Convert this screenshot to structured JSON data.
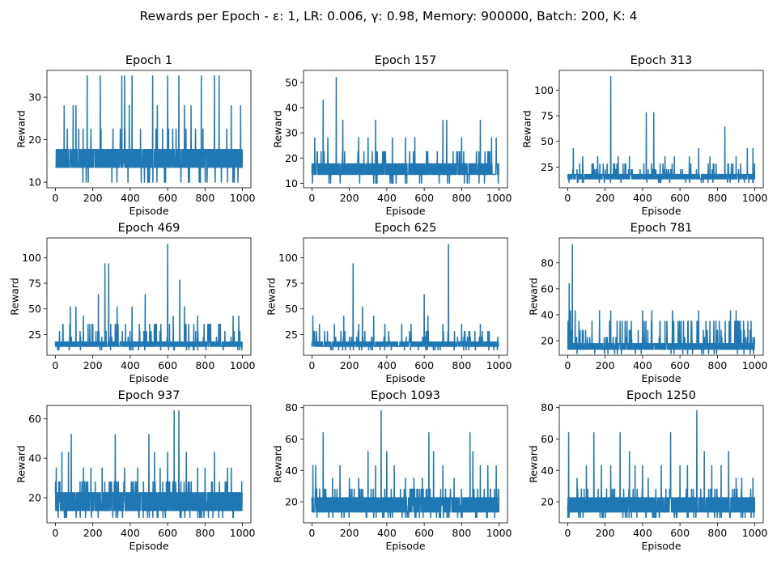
{
  "figure": {
    "suptitle": "Rewards per Epoch - ε: 1, LR: 0.006, γ: 0.98, Memory: 900000, Batch: 200, K: 4"
  },
  "style": {
    "line_color": "#1f77b4",
    "axes_color": "#000000",
    "background": "#ffffff"
  },
  "chart_data": [
    {
      "type": "line",
      "title": "Epoch 1",
      "xlabel": "Episode",
      "ylabel": "Reward",
      "xlim": [
        -45,
        1045
      ],
      "ylim": [
        8.7,
        36.3
      ],
      "x_ticks": [
        0,
        200,
        400,
        600,
        800,
        1000
      ],
      "y_ticks": [
        10,
        20,
        30
      ],
      "series": [
        {
          "x_range": [
            0,
            999
          ],
          "baseline": [
            13.5,
            17.7
          ],
          "noise_levels": [
            10,
            13.5,
            14.5,
            16,
            17.7,
            22.5
          ],
          "spike_probability": 0.13,
          "spikes": [
            [
              47,
              28
            ],
            [
              95,
              28
            ],
            [
              110,
              28
            ],
            [
              170,
              35
            ],
            [
              240,
              35
            ],
            [
              355,
              35
            ],
            [
              370,
              35
            ],
            [
              395,
              28
            ],
            [
              410,
              35
            ],
            [
              520,
              35
            ],
            [
              545,
              28
            ],
            [
              600,
              35
            ],
            [
              660,
              35
            ],
            [
              690,
              28
            ],
            [
              725,
              28
            ],
            [
              780,
              35
            ],
            [
              850,
              35
            ],
            [
              875,
              35
            ],
            [
              940,
              28
            ],
            [
              990,
              28
            ]
          ]
        }
      ]
    },
    {
      "type": "line",
      "title": "Epoch 157",
      "xlabel": "Episode",
      "ylabel": "Reward",
      "xlim": [
        -45,
        1045
      ],
      "ylim": [
        8.2,
        54.8
      ],
      "x_ticks": [
        0,
        200,
        400,
        600,
        800,
        1000
      ],
      "y_ticks": [
        10,
        20,
        30,
        40,
        50
      ],
      "series": [
        {
          "x_range": [
            0,
            999
          ],
          "baseline": [
            13.5,
            17.7
          ],
          "noise_levels": [
            10,
            13.5,
            17.7,
            22.5
          ],
          "spike_probability": 0.13,
          "spikes": [
            [
              15,
              28
            ],
            [
              60,
              43
            ],
            [
              85,
              28
            ],
            [
              130,
              52
            ],
            [
              165,
              35
            ],
            [
              250,
              28
            ],
            [
              300,
              28
            ],
            [
              340,
              35
            ],
            [
              430,
              28
            ],
            [
              500,
              28
            ],
            [
              550,
              28
            ],
            [
              700,
              35
            ],
            [
              720,
              35
            ],
            [
              800,
              28
            ],
            [
              900,
              35
            ],
            [
              960,
              28
            ],
            [
              985,
              28
            ]
          ]
        }
      ]
    },
    {
      "type": "line",
      "title": "Epoch 313",
      "xlabel": "Episode",
      "ylabel": "Reward",
      "xlim": [
        -45,
        1045
      ],
      "ylim": [
        4.8,
        119.2
      ],
      "x_ticks": [
        0,
        200,
        400,
        600,
        800,
        1000
      ],
      "y_ticks": [
        25,
        50,
        75,
        100
      ],
      "series": [
        {
          "x_range": [
            0,
            999
          ],
          "baseline": [
            13.5,
            17.7
          ],
          "noise_levels": [
            10,
            13.5,
            17.7,
            22.5,
            28
          ],
          "spike_probability": 0.16,
          "spikes": [
            [
              30,
              43
            ],
            [
              80,
              35
            ],
            [
              160,
              35
            ],
            [
              230,
              113
            ],
            [
              270,
              35
            ],
            [
              330,
              35
            ],
            [
              420,
              78
            ],
            [
              460,
              78
            ],
            [
              520,
              35
            ],
            [
              570,
              35
            ],
            [
              650,
              35
            ],
            [
              700,
              43
            ],
            [
              760,
              35
            ],
            [
              840,
              64
            ],
            [
              900,
              35
            ],
            [
              960,
              43
            ],
            [
              990,
              43
            ]
          ]
        }
      ]
    },
    {
      "type": "line",
      "title": "Epoch 469",
      "xlabel": "Episode",
      "ylabel": "Reward",
      "xlim": [
        -45,
        1045
      ],
      "ylim": [
        4.8,
        119.2
      ],
      "x_ticks": [
        0,
        200,
        400,
        600,
        800,
        1000
      ],
      "y_ticks": [
        25,
        50,
        75,
        100
      ],
      "series": [
        {
          "x_range": [
            0,
            999
          ],
          "baseline": [
            13.5,
            17.7
          ],
          "noise_levels": [
            10,
            13.5,
            17.7,
            22.5,
            28,
            35
          ],
          "spike_probability": 0.17,
          "spikes": [
            [
              40,
              35
            ],
            [
              80,
              52
            ],
            [
              110,
              52
            ],
            [
              150,
              43
            ],
            [
              200,
              35
            ],
            [
              230,
              64
            ],
            [
              265,
              94
            ],
            [
              285,
              94
            ],
            [
              330,
              52
            ],
            [
              410,
              52
            ],
            [
              480,
              64
            ],
            [
              540,
              35
            ],
            [
              600,
              113
            ],
            [
              630,
              43
            ],
            [
              665,
              78
            ],
            [
              690,
              52
            ],
            [
              760,
              43
            ],
            [
              830,
              35
            ],
            [
              950,
              43
            ],
            [
              980,
              43
            ]
          ]
        }
      ]
    },
    {
      "type": "line",
      "title": "Epoch 625",
      "xlabel": "Episode",
      "ylabel": "Reward",
      "xlim": [
        -45,
        1045
      ],
      "ylim": [
        4.8,
        119.2
      ],
      "x_ticks": [
        0,
        200,
        400,
        600,
        800,
        1000
      ],
      "y_ticks": [
        25,
        50,
        75,
        100
      ],
      "series": [
        {
          "x_range": [
            0,
            999
          ],
          "baseline": [
            13.5,
            17.7
          ],
          "noise_levels": [
            10,
            13.5,
            17.7,
            22.5,
            28
          ],
          "spike_probability": 0.15,
          "spikes": [
            [
              5,
              43
            ],
            [
              40,
              35
            ],
            [
              120,
              35
            ],
            [
              170,
              43
            ],
            [
              220,
              94
            ],
            [
              250,
              35
            ],
            [
              270,
              52
            ],
            [
              330,
              43
            ],
            [
              390,
              35
            ],
            [
              480,
              35
            ],
            [
              530,
              35
            ],
            [
              600,
              64
            ],
            [
              620,
              43
            ],
            [
              700,
              35
            ],
            [
              730,
              113
            ],
            [
              800,
              35
            ],
            [
              900,
              35
            ]
          ]
        }
      ]
    },
    {
      "type": "line",
      "title": "Epoch 781",
      "xlabel": "Episode",
      "ylabel": "Reward",
      "xlim": [
        -45,
        1045
      ],
      "ylim": [
        8.8,
        99.2
      ],
      "x_ticks": [
        0,
        200,
        400,
        600,
        800,
        1000
      ],
      "y_ticks": [
        20,
        40,
        60,
        80
      ],
      "series": [
        {
          "x_range": [
            0,
            999
          ],
          "baseline": [
            13.5,
            17.7
          ],
          "noise_levels": [
            10,
            13.5,
            17.7,
            22.5,
            28,
            35
          ],
          "spike_probability": 0.17,
          "spikes": [
            [
              8,
              64
            ],
            [
              15,
              43
            ],
            [
              25,
              94
            ],
            [
              40,
              43
            ],
            [
              60,
              35
            ],
            [
              130,
              35
            ],
            [
              170,
              43
            ],
            [
              230,
              43
            ],
            [
              280,
              35
            ],
            [
              340,
              35
            ],
            [
              400,
              43
            ],
            [
              450,
              43
            ],
            [
              520,
              35
            ],
            [
              560,
              43
            ],
            [
              590,
              35
            ],
            [
              660,
              35
            ],
            [
              700,
              43
            ],
            [
              760,
              35
            ],
            [
              810,
              35
            ],
            [
              870,
              43
            ],
            [
              900,
              43
            ],
            [
              940,
              35
            ],
            [
              980,
              35
            ]
          ]
        }
      ]
    },
    {
      "type": "line",
      "title": "Epoch 937",
      "xlabel": "Episode",
      "ylabel": "Reward",
      "xlim": [
        -45,
        1045
      ],
      "ylim": [
        7.3,
        66.7
      ],
      "x_ticks": [
        0,
        200,
        400,
        600,
        800,
        1000
      ],
      "y_ticks": [
        20,
        40,
        60
      ],
      "series": [
        {
          "x_range": [
            0,
            999
          ],
          "baseline": [
            13.5,
            22.5
          ],
          "noise_levels": [
            10,
            13.5,
            17.7,
            22.5,
            28
          ],
          "spike_probability": 0.25,
          "spikes": [
            [
              5,
              35
            ],
            [
              35,
              43
            ],
            [
              70,
              43
            ],
            [
              85,
              52
            ],
            [
              150,
              35
            ],
            [
              190,
              35
            ],
            [
              250,
              35
            ],
            [
              320,
              52
            ],
            [
              370,
              35
            ],
            [
              440,
              35
            ],
            [
              500,
              52
            ],
            [
              530,
              43
            ],
            [
              560,
              35
            ],
            [
              600,
              43
            ],
            [
              635,
              64
            ],
            [
              660,
              64
            ],
            [
              700,
              43
            ],
            [
              760,
              35
            ],
            [
              800,
              35
            ],
            [
              850,
              43
            ],
            [
              920,
              35
            ],
            [
              940,
              35
            ]
          ]
        }
      ]
    },
    {
      "type": "line",
      "title": "Epoch 1093",
      "xlabel": "Episode",
      "ylabel": "Reward",
      "xlim": [
        -45,
        1045
      ],
      "ylim": [
        6.6,
        81.4
      ],
      "x_ticks": [
        0,
        200,
        400,
        600,
        800,
        1000
      ],
      "y_ticks": [
        20,
        40,
        60,
        80
      ],
      "series": [
        {
          "x_range": [
            0,
            999
          ],
          "baseline": [
            13.5,
            22.5
          ],
          "noise_levels": [
            10,
            13.5,
            17.7,
            22.5,
            28
          ],
          "spike_probability": 0.22,
          "spikes": [
            [
              5,
              43
            ],
            [
              20,
              43
            ],
            [
              60,
              64
            ],
            [
              110,
              35
            ],
            [
              150,
              43
            ],
            [
              200,
              35
            ],
            [
              250,
              35
            ],
            [
              300,
              52
            ],
            [
              340,
              43
            ],
            [
              370,
              78
            ],
            [
              400,
              52
            ],
            [
              440,
              43
            ],
            [
              500,
              35
            ],
            [
              545,
              35
            ],
            [
              590,
              35
            ],
            [
              625,
              64
            ],
            [
              650,
              52
            ],
            [
              700,
              43
            ],
            [
              760,
              35
            ],
            [
              845,
              64
            ],
            [
              860,
              52
            ],
            [
              900,
              43
            ],
            [
              940,
              43
            ],
            [
              985,
              43
            ]
          ]
        }
      ]
    },
    {
      "type": "line",
      "title": "Epoch 1250",
      "xlabel": "Episode",
      "ylabel": "Reward",
      "xlim": [
        -45,
        1045
      ],
      "ylim": [
        6.6,
        81.4
      ],
      "x_ticks": [
        0,
        200,
        400,
        600,
        800,
        1000
      ],
      "y_ticks": [
        20,
        40,
        60,
        80
      ],
      "series": [
        {
          "x_range": [
            0,
            999
          ],
          "baseline": [
            13.5,
            22.5
          ],
          "noise_levels": [
            10,
            13.5,
            17.7,
            22.5,
            28
          ],
          "spike_probability": 0.22,
          "spikes": [
            [
              5,
              64
            ],
            [
              50,
              35
            ],
            [
              100,
              43
            ],
            [
              140,
              64
            ],
            [
              180,
              43
            ],
            [
              230,
              43
            ],
            [
              280,
              64
            ],
            [
              330,
              52
            ],
            [
              360,
              43
            ],
            [
              400,
              43
            ],
            [
              430,
              35
            ],
            [
              500,
              43
            ],
            [
              550,
              64
            ],
            [
              600,
              43
            ],
            [
              640,
              43
            ],
            [
              690,
              78
            ],
            [
              730,
              52
            ],
            [
              770,
              43
            ],
            [
              820,
              43
            ],
            [
              860,
              52
            ],
            [
              900,
              35
            ],
            [
              930,
              35
            ],
            [
              990,
              35
            ]
          ]
        }
      ]
    }
  ]
}
